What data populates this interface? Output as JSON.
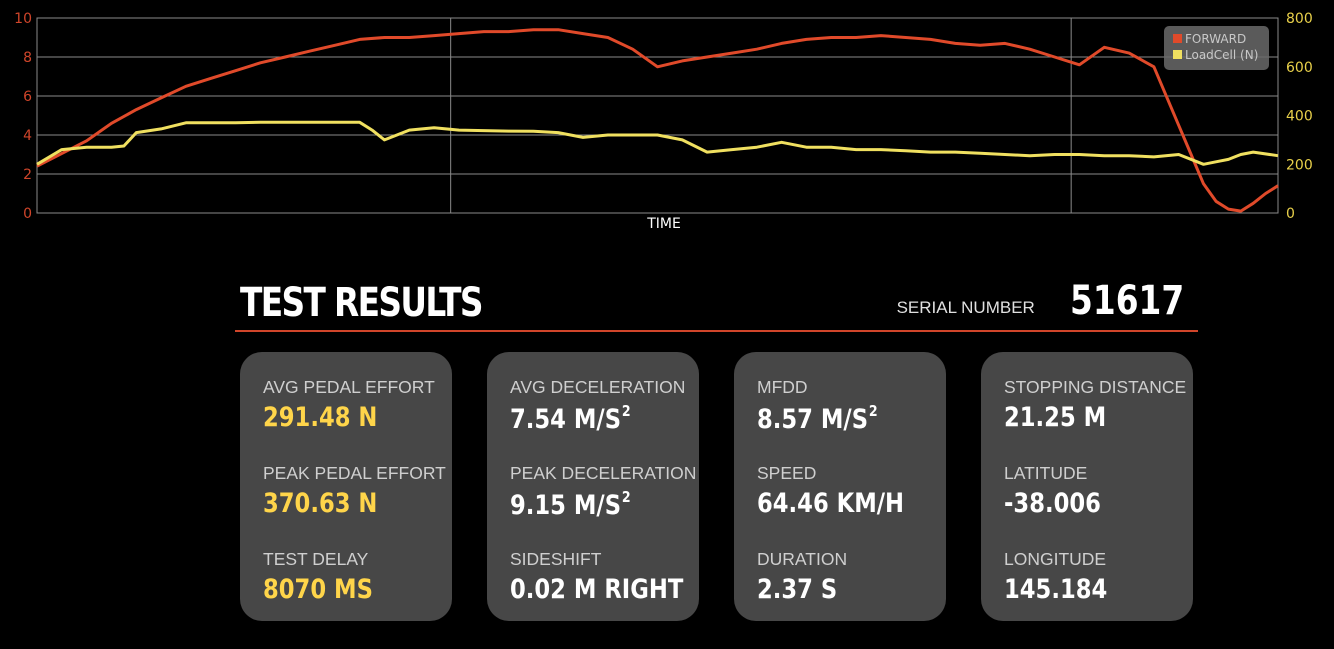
{
  "chart_data": {
    "type": "line",
    "xlabel": "TIME",
    "y_left": {
      "ticks": [
        "0",
        "2",
        "4",
        "6",
        "8",
        "10"
      ],
      "range": [
        0,
        10
      ],
      "color": "#d0452a"
    },
    "y_right": {
      "ticks": [
        "0",
        "200",
        "400",
        "600",
        "800"
      ],
      "range": [
        0,
        800
      ],
      "color": "#e8d04a"
    },
    "grid": true,
    "legend_position": "top-right",
    "series": [
      {
        "name": "FORWARD",
        "axis": "left",
        "color": "#e04a2a",
        "x": [
          0,
          4,
          6,
          8,
          10,
          12,
          14,
          16,
          18,
          20,
          22,
          24,
          26,
          28,
          30,
          32,
          34,
          36,
          38,
          40,
          42,
          44,
          46,
          48,
          50,
          52,
          54,
          56,
          58,
          60,
          62,
          64,
          66,
          68,
          70,
          72,
          74,
          76,
          78,
          80,
          82,
          84,
          86,
          88,
          90,
          92,
          93,
          94,
          95,
          96,
          97,
          98,
          99,
          100
        ],
        "y": [
          2.4,
          3.7,
          4.6,
          5.3,
          5.9,
          6.5,
          6.9,
          7.3,
          7.7,
          8.0,
          8.3,
          8.6,
          8.9,
          9.0,
          9.0,
          9.1,
          9.2,
          9.3,
          9.3,
          9.4,
          9.4,
          9.2,
          9.0,
          8.4,
          7.5,
          7.8,
          8.0,
          8.2,
          8.4,
          8.7,
          8.9,
          9.0,
          9.0,
          9.1,
          9.0,
          8.9,
          8.7,
          8.6,
          8.7,
          8.4,
          8.0,
          7.6,
          8.5,
          8.2,
          7.5,
          4.5,
          3.0,
          1.5,
          0.6,
          0.2,
          0.1,
          0.5,
          1.0,
          1.4
        ]
      },
      {
        "name": "LoadCell (N)",
        "axis": "right",
        "color": "#f0e060",
        "x": [
          0,
          2,
          4,
          6,
          7,
          8,
          10,
          12,
          14,
          16,
          18,
          20,
          22,
          24,
          26,
          27,
          28,
          30,
          32,
          34,
          36,
          38,
          40,
          42,
          44,
          46,
          48,
          50,
          52,
          54,
          56,
          58,
          60,
          62,
          64,
          66,
          68,
          70,
          72,
          74,
          76,
          78,
          80,
          82,
          84,
          86,
          88,
          90,
          92,
          94,
          95,
          96,
          97,
          98,
          100
        ],
        "y": [
          200,
          260,
          270,
          270,
          275,
          330,
          345,
          370,
          370,
          370,
          372,
          372,
          372,
          372,
          372,
          340,
          300,
          340,
          350,
          340,
          338,
          336,
          335,
          330,
          310,
          320,
          320,
          320,
          300,
          250,
          260,
          270,
          290,
          270,
          270,
          260,
          260,
          255,
          250,
          250,
          245,
          240,
          235,
          240,
          240,
          235,
          235,
          230,
          240,
          200,
          210,
          220,
          240,
          250,
          235
        ]
      }
    ]
  },
  "results": {
    "title": "TEST RESULTS",
    "serial_label": "SERIAL NUMBER",
    "serial_number": "51617"
  },
  "cards": [
    {
      "items": [
        {
          "label": "AVG PEDAL EFFORT",
          "value": "291.48 N",
          "sup": "",
          "color": "yellow"
        },
        {
          "label": "PEAK PEDAL EFFORT",
          "value": "370.63 N",
          "sup": "",
          "color": "yellow"
        },
        {
          "label": "TEST DELAY",
          "value": "8070 MS",
          "sup": "",
          "color": "yellow"
        }
      ]
    },
    {
      "items": [
        {
          "label": "AVG DECELERATION",
          "value": "7.54 M/S",
          "sup": "2",
          "color": "white"
        },
        {
          "label": "PEAK DECELERATION",
          "value": "9.15 M/S",
          "sup": "2",
          "color": "white"
        },
        {
          "label": "SIDESHIFT",
          "value": "0.02 M RIGHT",
          "sup": "",
          "color": "white"
        }
      ]
    },
    {
      "items": [
        {
          "label": "MFDD",
          "value": "8.57 M/S",
          "sup": "2",
          "color": "white"
        },
        {
          "label": "SPEED",
          "value": "64.46 KM/H",
          "sup": "",
          "color": "white"
        },
        {
          "label": "DURATION",
          "value": "2.37 S",
          "sup": "",
          "color": "white"
        }
      ]
    },
    {
      "items": [
        {
          "label": "STOPPING DISTANCE",
          "value": "21.25 M",
          "sup": "",
          "color": "white"
        },
        {
          "label": "LATITUDE",
          "value": "-38.006",
          "sup": "",
          "color": "white"
        },
        {
          "label": "LONGITUDE",
          "value": "145.184",
          "sup": "",
          "color": "white"
        }
      ]
    }
  ]
}
